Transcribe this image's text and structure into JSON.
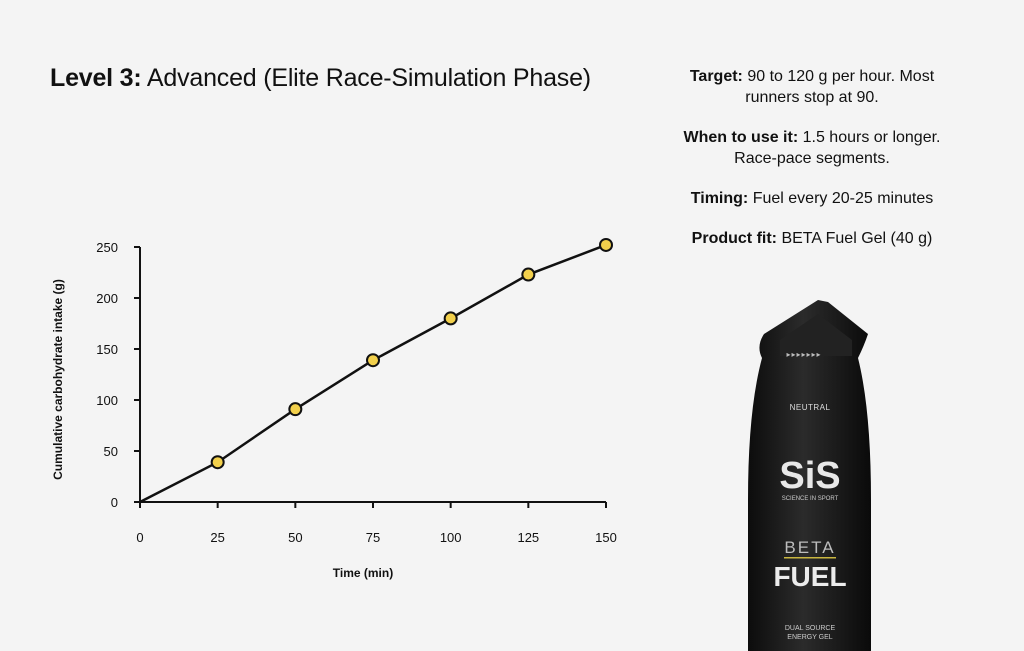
{
  "title": {
    "level": "Level 3:",
    "name": "Advanced (Elite Race-Simulation Phase)"
  },
  "info": [
    {
      "label": "Target:",
      "text": "90 to 120 g per hour. Most runners stop at 90."
    },
    {
      "label": "When to use it:",
      "text": "1.5 hours or longer. Race-pace segments."
    },
    {
      "label": "Timing:",
      "text": "Fuel every 20-25 minutes"
    },
    {
      "label": "Product fit:",
      "text": "BETA Fuel Gel (40 g)"
    }
  ],
  "product": {
    "flavor": "NEUTRAL",
    "brand": "SiS",
    "tagline": "SCIENCE IN SPORT",
    "line": "BETA",
    "name": "FUEL",
    "sub1": "DUAL SOURCE",
    "sub2": "ENERGY GEL"
  },
  "chart_data": {
    "type": "line",
    "title": "",
    "xlabel": "Time (min)",
    "ylabel": "Cumulative carbohydrate intake (g)",
    "xlim": [
      0,
      150
    ],
    "ylim": [
      0,
      250
    ],
    "xticks": [
      0,
      25,
      50,
      75,
      100,
      125,
      150
    ],
    "yticks": [
      0,
      50,
      100,
      150,
      200,
      250
    ],
    "grid": false,
    "series": [
      {
        "x": [
          0,
          25,
          50,
          75,
          100,
          125,
          150
        ],
        "y": [
          0,
          39,
          91,
          139,
          180,
          223,
          252
        ],
        "markers": [
          false,
          true,
          true,
          true,
          true,
          true,
          true
        ]
      }
    ],
    "colors": {
      "line": "#111111",
      "marker_fill": "#f2d04c",
      "marker_edge": "#111111"
    }
  }
}
